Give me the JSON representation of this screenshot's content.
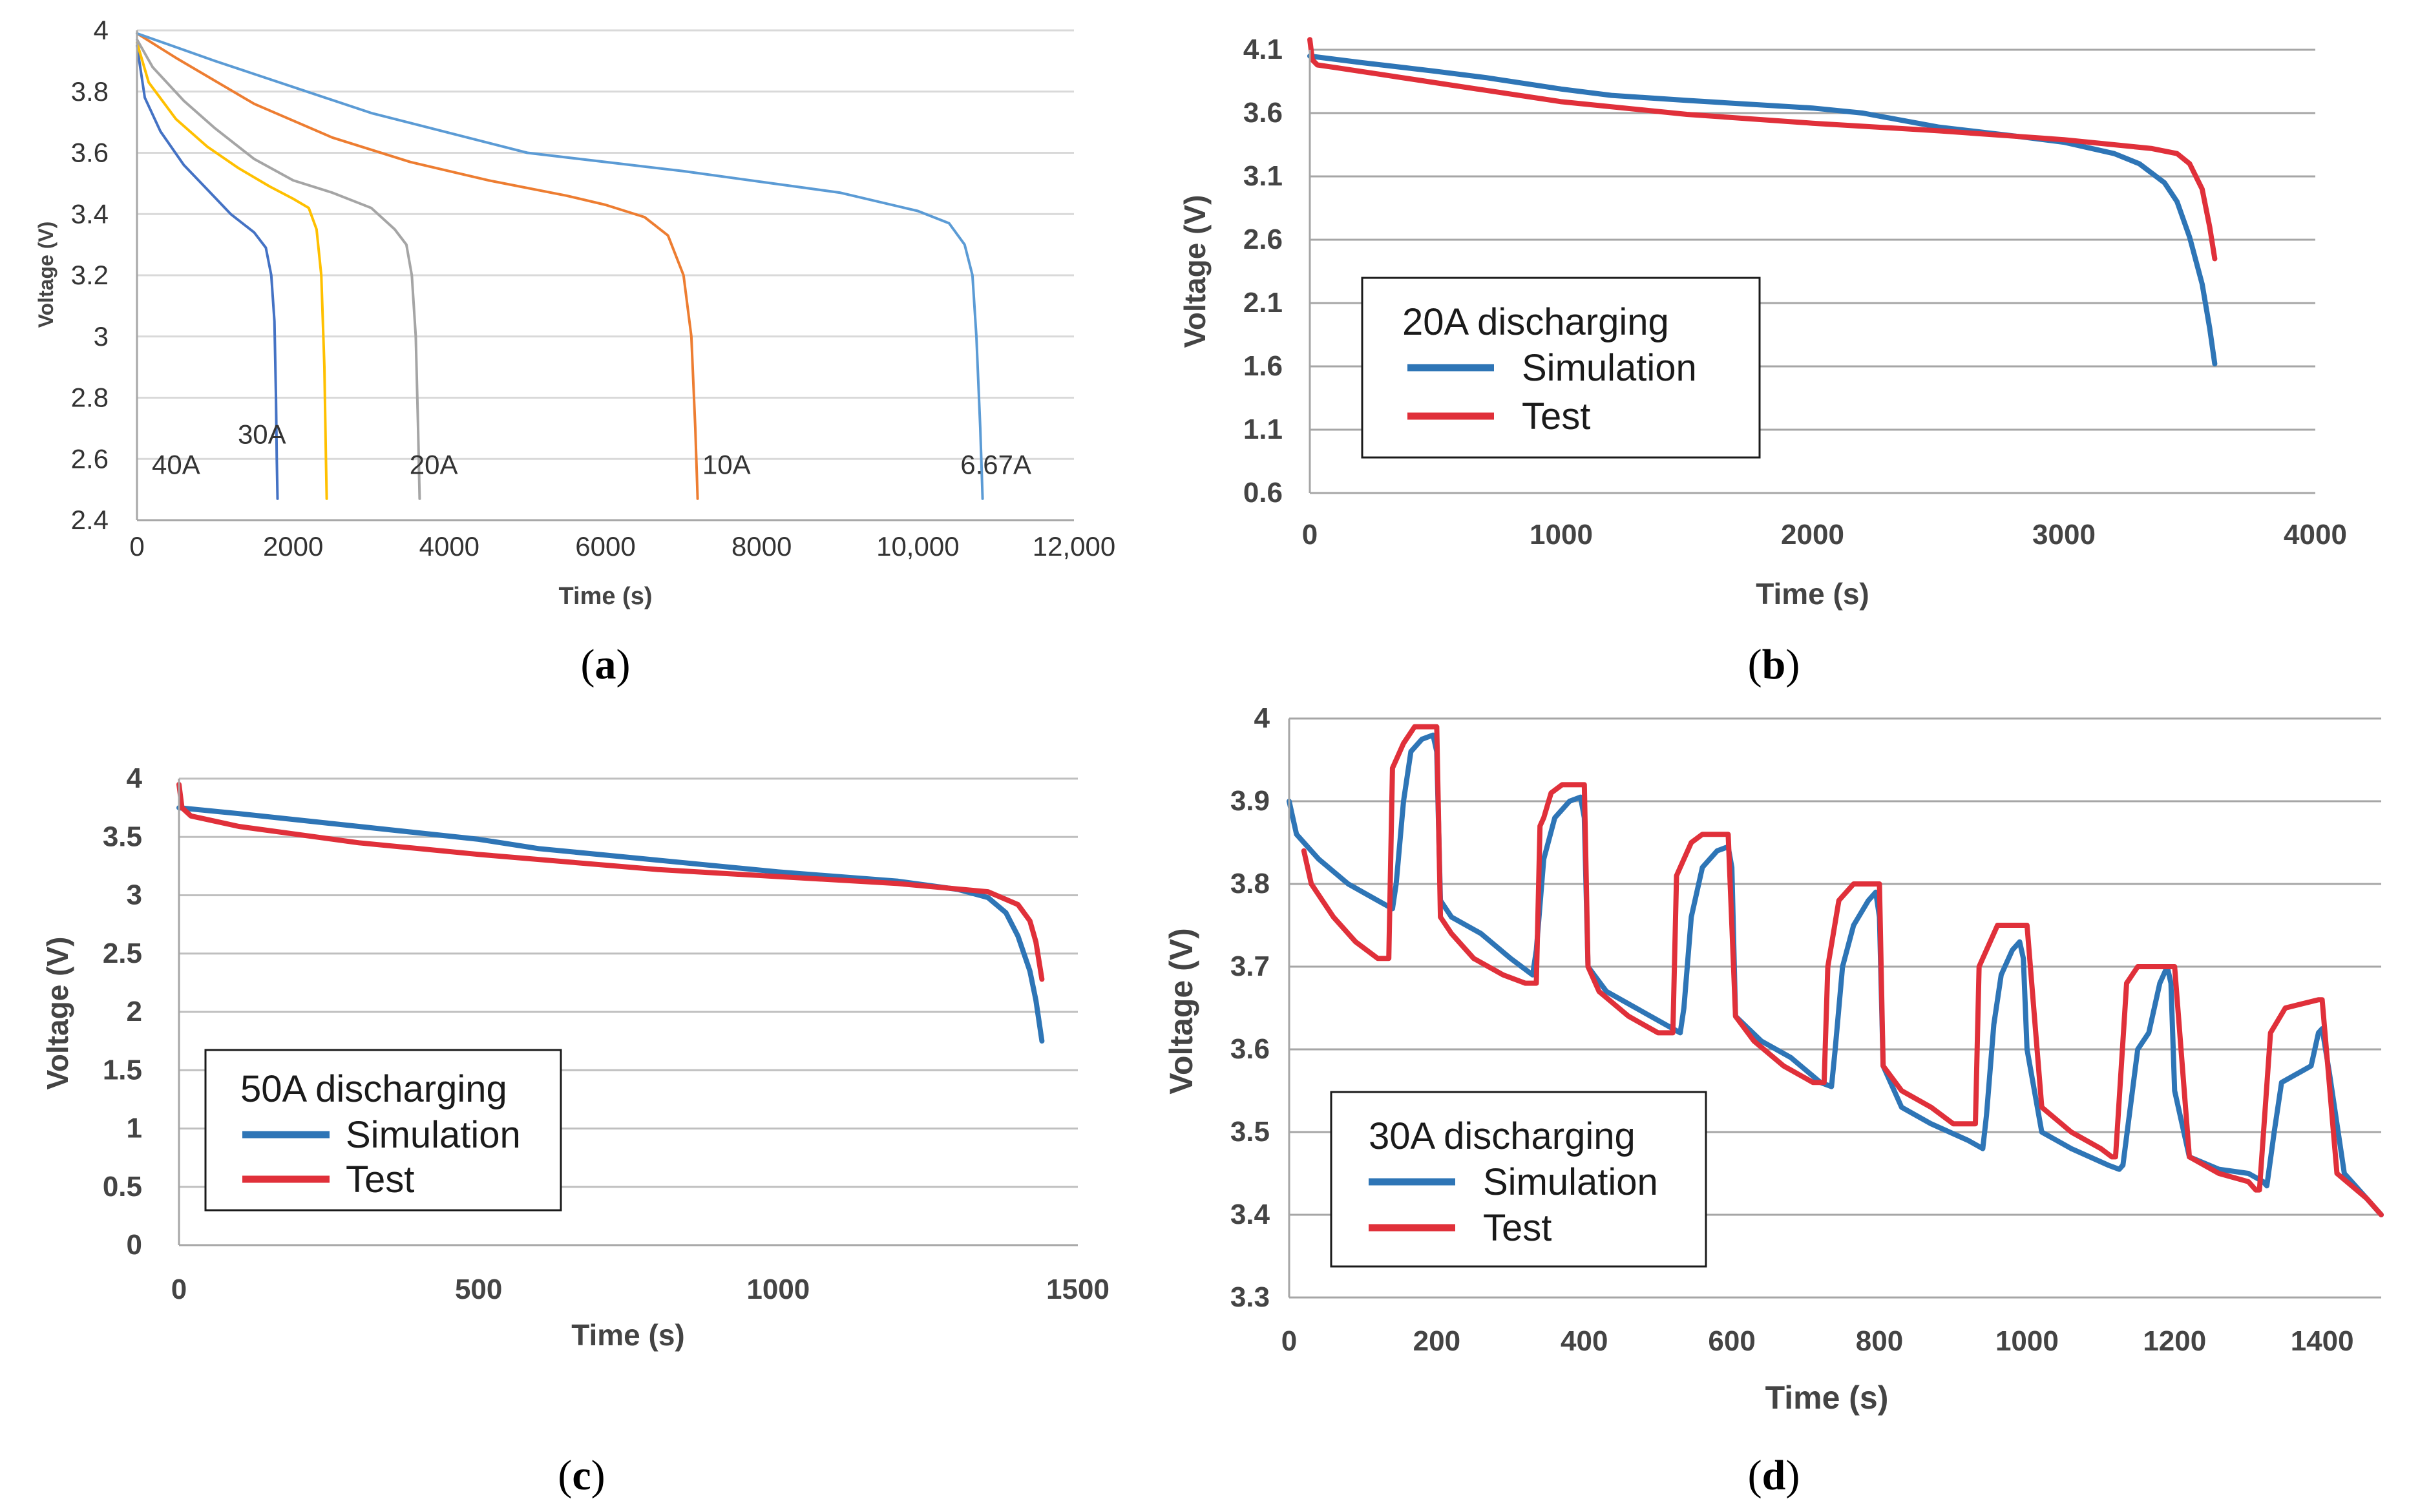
{
  "panels": [
    {
      "label_prefix": "(",
      "label_letter": "a",
      "label_suffix": ")"
    },
    {
      "label_prefix": "(",
      "label_letter": "b",
      "label_suffix": ")"
    },
    {
      "label_prefix": "(",
      "label_letter": "c",
      "label_suffix": ")"
    },
    {
      "label_prefix": "(",
      "label_letter": "d",
      "label_suffix": ")"
    }
  ],
  "chart_data": [
    {
      "id": "a",
      "type": "line",
      "title": "",
      "xlabel": "Time (s)",
      "ylabel": "Voltage (V)",
      "xlim": [
        0,
        12000
      ],
      "ylim": [
        2.4,
        4.0
      ],
      "xticks": [
        0,
        2000,
        4000,
        6000,
        8000,
        10000,
        12000
      ],
      "xtick_labels": [
        "0",
        "2000",
        "4000",
        "6000",
        "8000",
        "10,000",
        "12,000"
      ],
      "yticks": [
        2.4,
        2.6,
        2.8,
        3,
        3.2,
        3.4,
        3.6,
        3.8,
        4
      ],
      "ytick_labels": [
        "2.4",
        "2.6",
        "2.8",
        "3",
        "3.2",
        "3.4",
        "3.6",
        "3.8",
        "4"
      ],
      "grid": true,
      "series": [
        {
          "name": "40A",
          "color": "#4472c4",
          "x": [
            0,
            100,
            300,
            600,
            900,
            1200,
            1500,
            1650,
            1720,
            1760,
            1780,
            1790,
            1800
          ],
          "y": [
            3.95,
            3.78,
            3.67,
            3.56,
            3.48,
            3.4,
            3.34,
            3.29,
            3.2,
            3.05,
            2.8,
            2.6,
            2.47
          ]
        },
        {
          "name": "30A",
          "color": "#ffc000",
          "x": [
            0,
            150,
            500,
            900,
            1300,
            1700,
            2000,
            2200,
            2300,
            2360,
            2400,
            2420,
            2430
          ],
          "y": [
            3.96,
            3.83,
            3.71,
            3.62,
            3.55,
            3.49,
            3.45,
            3.42,
            3.35,
            3.2,
            2.9,
            2.6,
            2.47
          ]
        },
        {
          "name": "20A",
          "color": "#a5a5a5",
          "x": [
            0,
            200,
            600,
            1000,
            1500,
            2000,
            2500,
            3000,
            3300,
            3450,
            3520,
            3570,
            3600,
            3620
          ],
          "y": [
            3.97,
            3.88,
            3.77,
            3.68,
            3.58,
            3.51,
            3.47,
            3.42,
            3.35,
            3.3,
            3.2,
            3.0,
            2.7,
            2.47
          ]
        },
        {
          "name": "10A",
          "color": "#ed7d31",
          "x": [
            0,
            500,
            1500,
            2500,
            3500,
            4500,
            5500,
            6000,
            6500,
            6800,
            7000,
            7100,
            7150,
            7180
          ],
          "y": [
            3.99,
            3.91,
            3.76,
            3.65,
            3.57,
            3.51,
            3.46,
            3.43,
            3.39,
            3.33,
            3.2,
            3.0,
            2.7,
            2.47
          ]
        },
        {
          "name": "6.67A",
          "color": "#5b9bd5",
          "x": [
            0,
            1000,
            3000,
            5000,
            7000,
            9000,
            10000,
            10400,
            10600,
            10700,
            10750,
            10800,
            10830
          ],
          "y": [
            3.99,
            3.9,
            3.73,
            3.6,
            3.54,
            3.47,
            3.41,
            3.37,
            3.3,
            3.2,
            3.0,
            2.7,
            2.47
          ]
        }
      ],
      "annotations": [
        {
          "text": "40A",
          "x": 500,
          "y": 2.58
        },
        {
          "text": "30A",
          "x": 1600,
          "y": 2.68
        },
        {
          "text": "20A",
          "x": 3800,
          "y": 2.58
        },
        {
          "text": "10A",
          "x": 7550,
          "y": 2.58
        },
        {
          "text": "6.67A",
          "x": 11000,
          "y": 2.58
        }
      ]
    },
    {
      "id": "b",
      "type": "line",
      "title": "",
      "xlabel": "Time (s)",
      "ylabel": "Voltage (V)",
      "xlim": [
        0,
        4000
      ],
      "ylim": [
        0.6,
        4.1
      ],
      "xticks": [
        0,
        1000,
        2000,
        3000,
        4000
      ],
      "xtick_labels": [
        "0",
        "1000",
        "2000",
        "3000",
        "4000"
      ],
      "yticks": [
        0.6,
        1.1,
        1.6,
        2.1,
        2.6,
        3.1,
        3.6,
        4.1
      ],
      "ytick_labels": [
        "0.6",
        "1.1",
        "1.6",
        "2.1",
        "2.6",
        "3.1",
        "3.6",
        "4.1"
      ],
      "grid": true,
      "legend": {
        "title": "20A discharging",
        "position": "lower-left"
      },
      "series": [
        {
          "name": "Simulation",
          "color": "#2e75b6",
          "x": [
            0,
            200,
            500,
            700,
            1000,
            1200,
            1500,
            2000,
            2200,
            2500,
            2800,
            3000,
            3200,
            3300,
            3400,
            3450,
            3500,
            3550,
            3580,
            3600
          ],
          "y": [
            4.05,
            4.0,
            3.93,
            3.88,
            3.79,
            3.74,
            3.7,
            3.64,
            3.6,
            3.49,
            3.42,
            3.37,
            3.28,
            3.2,
            3.05,
            2.9,
            2.62,
            2.25,
            1.9,
            1.62
          ]
        },
        {
          "name": "Test",
          "color": "#e0303a",
          "x": [
            0,
            10,
            30,
            100,
            300,
            500,
            1000,
            1500,
            2000,
            2500,
            3000,
            3200,
            3350,
            3450,
            3500,
            3550,
            3580,
            3600
          ],
          "y": [
            4.18,
            4.02,
            3.98,
            3.96,
            3.9,
            3.84,
            3.69,
            3.59,
            3.52,
            3.46,
            3.39,
            3.35,
            3.32,
            3.28,
            3.2,
            3.0,
            2.7,
            2.45
          ]
        }
      ]
    },
    {
      "id": "c",
      "type": "line",
      "title": "",
      "xlabel": "Time (s)",
      "ylabel": "Voltage (V)",
      "xlim": [
        0,
        1500
      ],
      "ylim": [
        0,
        4
      ],
      "xticks": [
        0,
        500,
        1000,
        1500
      ],
      "xtick_labels": [
        "0",
        "500",
        "1000",
        "1500"
      ],
      "yticks": [
        0,
        0.5,
        1,
        1.5,
        2,
        2.5,
        3,
        3.5,
        4
      ],
      "ytick_labels": [
        "0",
        "0.5",
        "1",
        "1.5",
        "2",
        "2.5",
        "3",
        "3.5",
        "4"
      ],
      "grid": true,
      "legend": {
        "title": "50A discharging",
        "position": "lower-left"
      },
      "series": [
        {
          "name": "Simulation",
          "color": "#2e75b6",
          "x": [
            0,
            100,
            300,
            500,
            600,
            800,
            1000,
            1200,
            1300,
            1350,
            1380,
            1400,
            1420,
            1430,
            1440
          ],
          "y": [
            3.75,
            3.7,
            3.59,
            3.48,
            3.4,
            3.3,
            3.2,
            3.12,
            3.05,
            2.98,
            2.85,
            2.65,
            2.35,
            2.1,
            1.75
          ]
        },
        {
          "name": "Test",
          "color": "#e0303a",
          "x": [
            0,
            5,
            20,
            100,
            300,
            500,
            800,
            1000,
            1200,
            1350,
            1400,
            1420,
            1430,
            1440
          ],
          "y": [
            3.95,
            3.75,
            3.68,
            3.59,
            3.45,
            3.35,
            3.22,
            3.16,
            3.1,
            3.03,
            2.92,
            2.78,
            2.6,
            2.28
          ]
        }
      ]
    },
    {
      "id": "d",
      "type": "line",
      "title": "",
      "xlabel": "Time (s)",
      "ylabel": "Voltage (V)",
      "xlim": [
        0,
        1480
      ],
      "ylim": [
        3.3,
        4.0
      ],
      "xticks": [
        0,
        200,
        400,
        600,
        800,
        1000,
        1200,
        1400
      ],
      "xtick_labels": [
        "0",
        "200",
        "400",
        "600",
        "800",
        "1000",
        "1200",
        "1400"
      ],
      "yticks": [
        3.3,
        3.4,
        3.5,
        3.6,
        3.7,
        3.8,
        3.9,
        4
      ],
      "ytick_labels": [
        "3.3",
        "3.4",
        "3.5",
        "3.6",
        "3.7",
        "3.8",
        "3.9",
        "4"
      ],
      "grid": true,
      "legend": {
        "title": "30A discharging",
        "position": "lower-left"
      },
      "series": [
        {
          "name": "Simulation",
          "color": "#2e75b6",
          "x": [
            0,
            10,
            40,
            80,
            120,
            140,
            145,
            155,
            165,
            180,
            195,
            200,
            205,
            220,
            260,
            300,
            330,
            335,
            345,
            360,
            380,
            395,
            400,
            405,
            430,
            470,
            510,
            530,
            535,
            545,
            560,
            580,
            595,
            600,
            605,
            640,
            680,
            720,
            735,
            740,
            750,
            765,
            785,
            795,
            800,
            805,
            830,
            870,
            920,
            940,
            945,
            955,
            965,
            980,
            990,
            995,
            1000,
            1020,
            1060,
            1110,
            1125,
            1130,
            1150,
            1165,
            1180,
            1190,
            1195,
            1200,
            1220,
            1260,
            1300,
            1320,
            1325,
            1335,
            1345,
            1365,
            1385,
            1395,
            1400,
            1410,
            1430,
            1460,
            1480
          ],
          "y": [
            3.9,
            3.86,
            3.83,
            3.8,
            3.78,
            3.77,
            3.8,
            3.9,
            3.96,
            3.975,
            3.98,
            3.96,
            3.78,
            3.76,
            3.74,
            3.71,
            3.69,
            3.72,
            3.83,
            3.88,
            3.9,
            3.905,
            3.88,
            3.7,
            3.67,
            3.65,
            3.63,
            3.62,
            3.65,
            3.76,
            3.82,
            3.84,
            3.845,
            3.82,
            3.64,
            3.61,
            3.59,
            3.56,
            3.555,
            3.6,
            3.7,
            3.75,
            3.78,
            3.79,
            3.76,
            3.58,
            3.53,
            3.51,
            3.49,
            3.48,
            3.52,
            3.63,
            3.69,
            3.72,
            3.73,
            3.71,
            3.6,
            3.5,
            3.48,
            3.46,
            3.455,
            3.46,
            3.6,
            3.62,
            3.68,
            3.7,
            3.68,
            3.55,
            3.47,
            3.455,
            3.45,
            3.44,
            3.435,
            3.5,
            3.56,
            3.57,
            3.58,
            3.62,
            3.625,
            3.57,
            3.45,
            3.42,
            3.4
          ]
        },
        {
          "name": "Test",
          "color": "#e0303a",
          "x": [
            20,
            30,
            60,
            90,
            120,
            135,
            140,
            145,
            155,
            170,
            200,
            205,
            220,
            250,
            290,
            320,
            335,
            340,
            345,
            355,
            370,
            400,
            405,
            420,
            460,
            500,
            520,
            525,
            530,
            545,
            560,
            590,
            595,
            605,
            630,
            670,
            710,
            725,
            730,
            745,
            765,
            800,
            805,
            830,
            870,
            900,
            930,
            935,
            945,
            960,
            995,
            1000,
            1020,
            1060,
            1100,
            1115,
            1120,
            1135,
            1150,
            1195,
            1200,
            1220,
            1260,
            1300,
            1310,
            1315,
            1330,
            1350,
            1395,
            1400,
            1420,
            1460,
            1480
          ],
          "y": [
            3.84,
            3.8,
            3.76,
            3.73,
            3.71,
            3.71,
            3.94,
            3.95,
            3.97,
            3.99,
            3.99,
            3.76,
            3.74,
            3.71,
            3.69,
            3.68,
            3.68,
            3.87,
            3.88,
            3.91,
            3.92,
            3.92,
            3.7,
            3.67,
            3.64,
            3.62,
            3.62,
            3.81,
            3.82,
            3.85,
            3.86,
            3.86,
            3.86,
            3.64,
            3.61,
            3.58,
            3.56,
            3.56,
            3.7,
            3.78,
            3.8,
            3.8,
            3.58,
            3.55,
            3.53,
            3.51,
            3.51,
            3.7,
            3.72,
            3.75,
            3.75,
            3.75,
            3.53,
            3.5,
            3.48,
            3.47,
            3.47,
            3.68,
            3.7,
            3.7,
            3.7,
            3.47,
            3.45,
            3.44,
            3.43,
            3.43,
            3.62,
            3.65,
            3.66,
            3.66,
            3.45,
            3.42,
            3.4
          ]
        }
      ]
    }
  ]
}
